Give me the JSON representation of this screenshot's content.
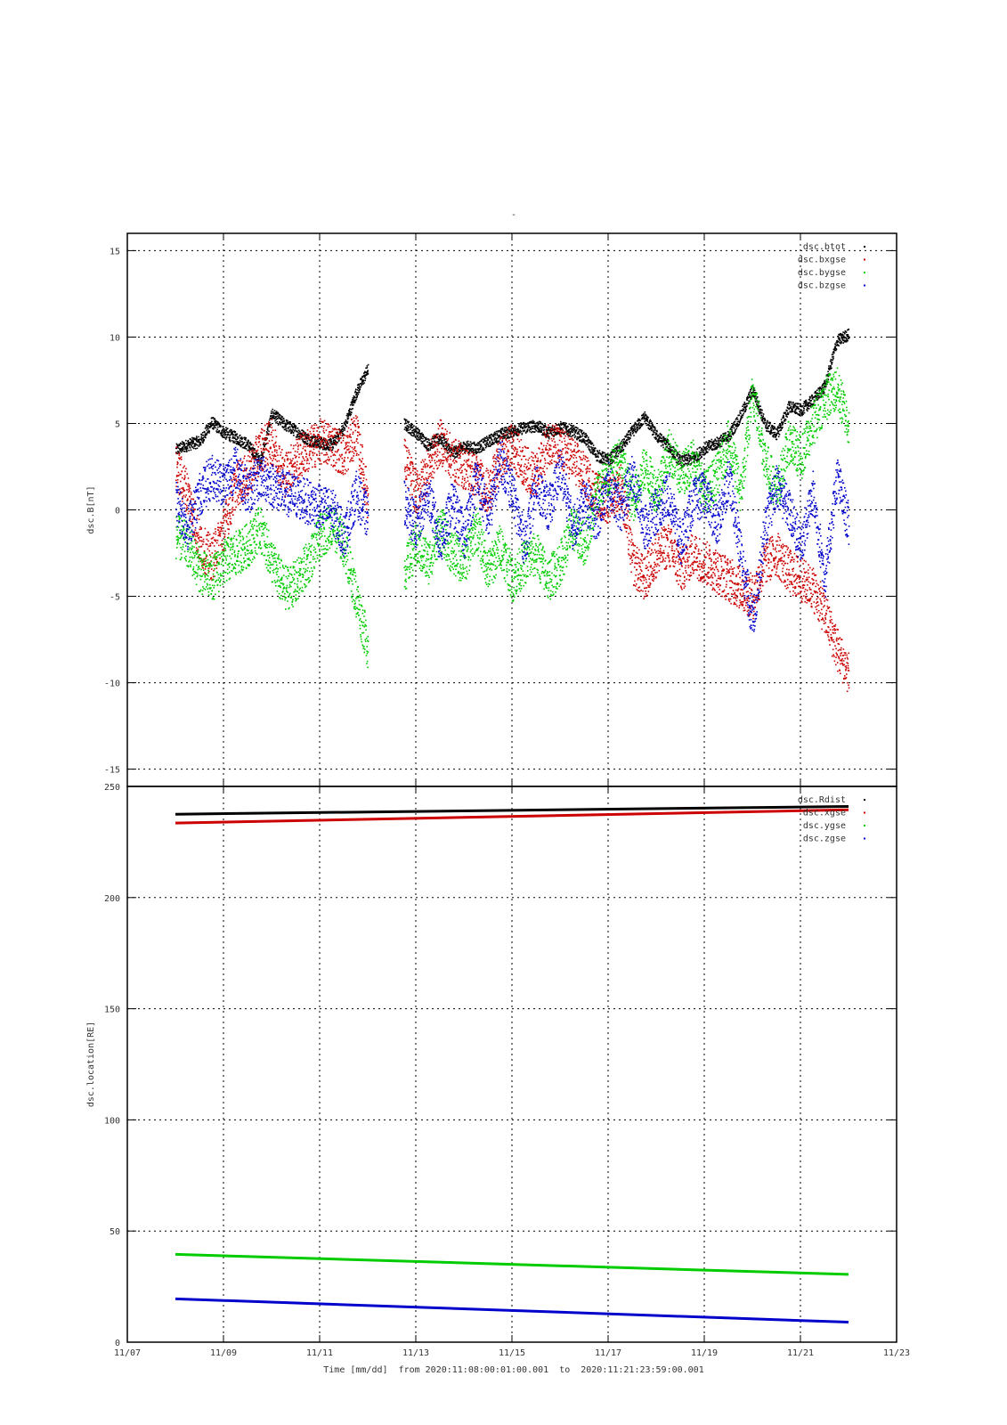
{
  "title": "-",
  "xlabel": "Time [mm/dd]  from 2020:11:08:00:01:00.001  to  2020:11:21:23:59:00.001",
  "x_ticks": [
    "11/07",
    "11/09",
    "11/11",
    "11/13",
    "11/15",
    "11/17",
    "11/19",
    "11/21",
    "11/23"
  ],
  "chart_data": [
    {
      "type": "scatter",
      "ylabel": "dsc.B[nT]",
      "xlim": [
        "2020-11-07",
        "2020-11-23"
      ],
      "ylim": [
        -16,
        16
      ],
      "y_ticks": [
        -15,
        -10,
        -5,
        0,
        5,
        10,
        15
      ],
      "grid": true,
      "legend_position": "top-right",
      "x_days": [
        8.0,
        8.25,
        8.5,
        8.75,
        9.0,
        9.25,
        9.5,
        9.75,
        10.0,
        10.25,
        10.5,
        10.75,
        11.0,
        11.25,
        11.5,
        11.75,
        12.0,
        12.75,
        13.0,
        13.25,
        13.5,
        13.75,
        14.0,
        14.25,
        14.5,
        14.75,
        15.0,
        15.25,
        15.5,
        15.75,
        16.0,
        16.25,
        16.5,
        16.75,
        17.0,
        17.25,
        17.5,
        17.75,
        18.0,
        18.25,
        18.5,
        18.75,
        19.0,
        19.25,
        19.5,
        19.75,
        20.0,
        20.25,
        20.5,
        20.75,
        21.0,
        21.25,
        21.5,
        21.75,
        22.0
      ],
      "series": [
        {
          "name": "dsc.btot",
          "color": "#000000",
          "values": [
            3.5,
            3.8,
            4.0,
            5.1,
            4.5,
            4.2,
            3.8,
            2.8,
            5.6,
            5.0,
            4.6,
            4.1,
            3.9,
            3.8,
            4.8,
            6.8,
            8.2,
            5.0,
            4.5,
            3.8,
            4.2,
            3.3,
            3.7,
            3.6,
            4.0,
            4.4,
            4.6,
            4.8,
            4.9,
            4.5,
            4.8,
            4.6,
            4.2,
            3.2,
            2.9,
            3.6,
            4.6,
            5.4,
            4.3,
            3.7,
            2.8,
            3.0,
            3.6,
            3.9,
            4.3,
            5.5,
            7.0,
            5.0,
            4.4,
            6.0,
            5.8,
            6.4,
            7.2,
            9.8,
            10.2
          ]
        },
        {
          "name": "dsc.bxgse",
          "color": "#cc0000",
          "values": [
            2.5,
            1.0,
            -2.0,
            -2.8,
            -1.0,
            1.5,
            2.0,
            3.5,
            4.0,
            2.0,
            3.0,
            3.5,
            4.0,
            3.8,
            3.2,
            4.5,
            0.5,
            3.0,
            1.0,
            2.5,
            4.0,
            3.0,
            2.5,
            2.0,
            1.0,
            3.0,
            3.8,
            2.5,
            2.0,
            4.0,
            3.5,
            3.0,
            2.0,
            1.0,
            0.5,
            1.5,
            -3.0,
            -4.0,
            -2.5,
            -2.0,
            -3.5,
            -2.5,
            -3.0,
            -3.5,
            -4.0,
            -4.5,
            -5.0,
            -3.0,
            -2.5,
            -3.5,
            -4.0,
            -4.5,
            -6.0,
            -8.0,
            -9.5
          ]
        },
        {
          "name": "dsc.bygse",
          "color": "#00cc00",
          "values": [
            -1.5,
            -2.0,
            -3.5,
            -4.0,
            -3.0,
            -2.5,
            -2.0,
            -1.0,
            -3.0,
            -4.5,
            -4.2,
            -3.0,
            -1.5,
            -0.8,
            -2.0,
            -5.0,
            -8.0,
            -3.5,
            -2.0,
            -3.0,
            -1.0,
            -2.5,
            -3.0,
            -1.0,
            -3.5,
            -2.0,
            -4.0,
            -3.0,
            -2.5,
            -4.0,
            -3.0,
            -1.0,
            -2.0,
            1.0,
            2.0,
            3.0,
            0.5,
            2.5,
            1.0,
            3.5,
            2.0,
            3.0,
            1.0,
            2.0,
            4.0,
            1.0,
            7.0,
            3.0,
            1.0,
            4.0,
            3.0,
            5.0,
            6.5,
            7.0,
            5.0
          ]
        },
        {
          "name": "dsc.bzgse",
          "color": "#0000cc",
          "values": [
            0.5,
            -1.0,
            1.0,
            2.0,
            1.5,
            2.5,
            1.0,
            2.0,
            1.5,
            1.0,
            0.8,
            0.5,
            0.2,
            0.0,
            -1.5,
            1.0,
            -0.5,
            0.5,
            -1.0,
            1.0,
            -2.0,
            0.5,
            -1.5,
            2.0,
            -0.5,
            3.0,
            1.0,
            -2.0,
            1.5,
            0.0,
            2.5,
            -1.0,
            0.5,
            -0.5,
            1.5,
            0.0,
            2.0,
            -1.0,
            0.0,
            1.0,
            -2.0,
            0.5,
            1.0,
            -1.0,
            2.0,
            -2.5,
            -6.5,
            -1.0,
            1.5,
            0.0,
            -2.0,
            1.0,
            -4.0,
            2.0,
            -1.0
          ]
        }
      ]
    },
    {
      "type": "line",
      "ylabel": "dsc.location[RE]",
      "xlim": [
        "2020-11-07",
        "2020-11-23"
      ],
      "ylim": [
        0,
        250
      ],
      "y_ticks": [
        0,
        50,
        100,
        150,
        200,
        250
      ],
      "grid": true,
      "legend_position": "top-right",
      "x_days": [
        8.0,
        22.0
      ],
      "series": [
        {
          "name": "dsc.Rdist",
          "color": "#000000",
          "values": [
            237.5,
            241.0
          ]
        },
        {
          "name": "dsc.xgse",
          "color": "#cc0000",
          "values": [
            233.5,
            239.5
          ]
        },
        {
          "name": "dsc.ygse",
          "color": "#00cc00",
          "values": [
            39.5,
            30.5
          ]
        },
        {
          "name": "dsc.zgse",
          "color": "#0000cc",
          "values": [
            19.5,
            9.0
          ]
        }
      ]
    }
  ]
}
